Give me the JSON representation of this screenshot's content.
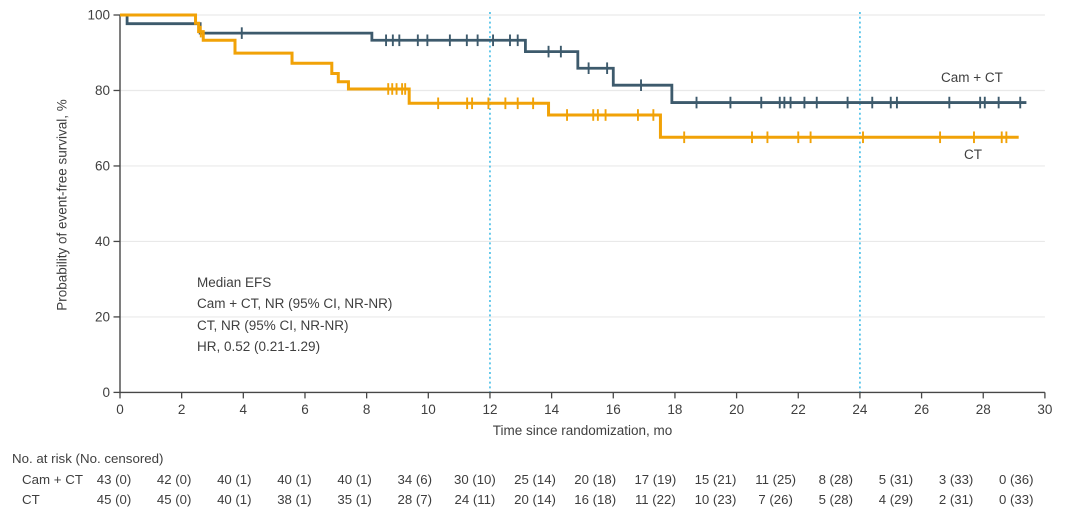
{
  "chart_data": {
    "type": "line",
    "subtype": "kaplan-meier-step",
    "title": "",
    "xlabel": "Time since randomization, mo",
    "ylabel": "Probability of event-free survival, %",
    "xlim": [
      0,
      30
    ],
    "ylim": [
      0,
      100
    ],
    "xticks": [
      0,
      2,
      4,
      6,
      8,
      10,
      12,
      14,
      16,
      18,
      20,
      22,
      24,
      26,
      28,
      30
    ],
    "yticks": [
      0,
      20,
      40,
      60,
      80,
      100
    ],
    "grid": true,
    "gridline_color": "#e9e9e9",
    "axis_color": "#474747",
    "text_color": "#3f3f3f",
    "reference_lines_x": [
      12,
      24
    ],
    "reference_line_color": "#4fc1e8",
    "series": [
      {
        "name": "Cam + CT",
        "color": "#3d5a6c",
        "steps": [
          [
            0,
            100
          ],
          [
            0.23,
            97.7
          ],
          [
            2.6,
            95.2
          ],
          [
            8.17,
            93.3
          ],
          [
            13.15,
            90.3
          ],
          [
            14.85,
            85.9
          ],
          [
            16.0,
            81.4
          ],
          [
            17.9,
            76.8
          ],
          [
            29.4,
            76.8
          ]
        ],
        "censor_times": [
          3.95,
          8.63,
          8.85,
          9.06,
          9.66,
          9.97,
          10.7,
          11.25,
          11.6,
          12.1,
          12.65,
          12.9,
          13.9,
          14.3,
          15.2,
          15.8,
          16.9,
          18.7,
          19.8,
          20.8,
          21.4,
          21.55,
          21.75,
          22.2,
          22.6,
          23.6,
          24.4,
          25.0,
          25.2,
          26.9,
          27.9,
          28.05,
          28.5,
          29.2
        ]
      },
      {
        "name": "CT",
        "color": "#f1a207",
        "steps": [
          [
            0,
            100
          ],
          [
            2.45,
            97.8
          ],
          [
            2.55,
            95.6
          ],
          [
            2.7,
            93.3
          ],
          [
            3.73,
            89.9
          ],
          [
            5.58,
            87.2
          ],
          [
            6.87,
            84.5
          ],
          [
            7.08,
            82.3
          ],
          [
            7.41,
            80.4
          ],
          [
            9.38,
            76.6
          ],
          [
            13.9,
            73.5
          ],
          [
            17.53,
            67.6
          ],
          [
            29.15,
            67.6
          ]
        ],
        "censor_times": [
          2.62,
          8.7,
          8.83,
          8.97,
          9.15,
          9.25,
          10.32,
          11.26,
          11.42,
          11.95,
          12.5,
          12.9,
          13.4,
          14.5,
          15.35,
          15.5,
          15.75,
          16.8,
          17.3,
          18.3,
          20.5,
          21.0,
          22.0,
          22.4,
          24.1,
          26.6,
          27.7,
          28.6,
          28.75
        ]
      }
    ],
    "curve_end_labels": {
      "cam_ct": "Cam + CT",
      "ct": "CT"
    },
    "annotation_lines": [
      "Median EFS",
      "Cam + CT, NR (95% CI, NR-NR)",
      "CT, NR (95% CI, NR-NR)",
      "HR, 0.52 (0.21-1.29)"
    ],
    "risk_table": {
      "header": "No. at risk (No. censored)",
      "rows": [
        {
          "label": "Cam + CT",
          "values": [
            "43 (0)",
            "42 (0)",
            "40 (1)",
            "40 (1)",
            "40 (1)",
            "34 (6)",
            "30 (10)",
            "25 (14)",
            "20 (18)",
            "17 (19)",
            "15 (21)",
            "11 (25)",
            "8 (28)",
            "5 (31)",
            "3 (33)",
            "0 (36)"
          ]
        },
        {
          "label": "CT",
          "values": [
            "45 (0)",
            "45 (0)",
            "40 (1)",
            "38 (1)",
            "35 (1)",
            "28 (7)",
            "24 (11)",
            "20 (14)",
            "16 (18)",
            "11 (22)",
            "10 (23)",
            "7 (26)",
            "5 (28)",
            "4 (29)",
            "2 (31)",
            "0 (33)"
          ]
        }
      ]
    }
  }
}
